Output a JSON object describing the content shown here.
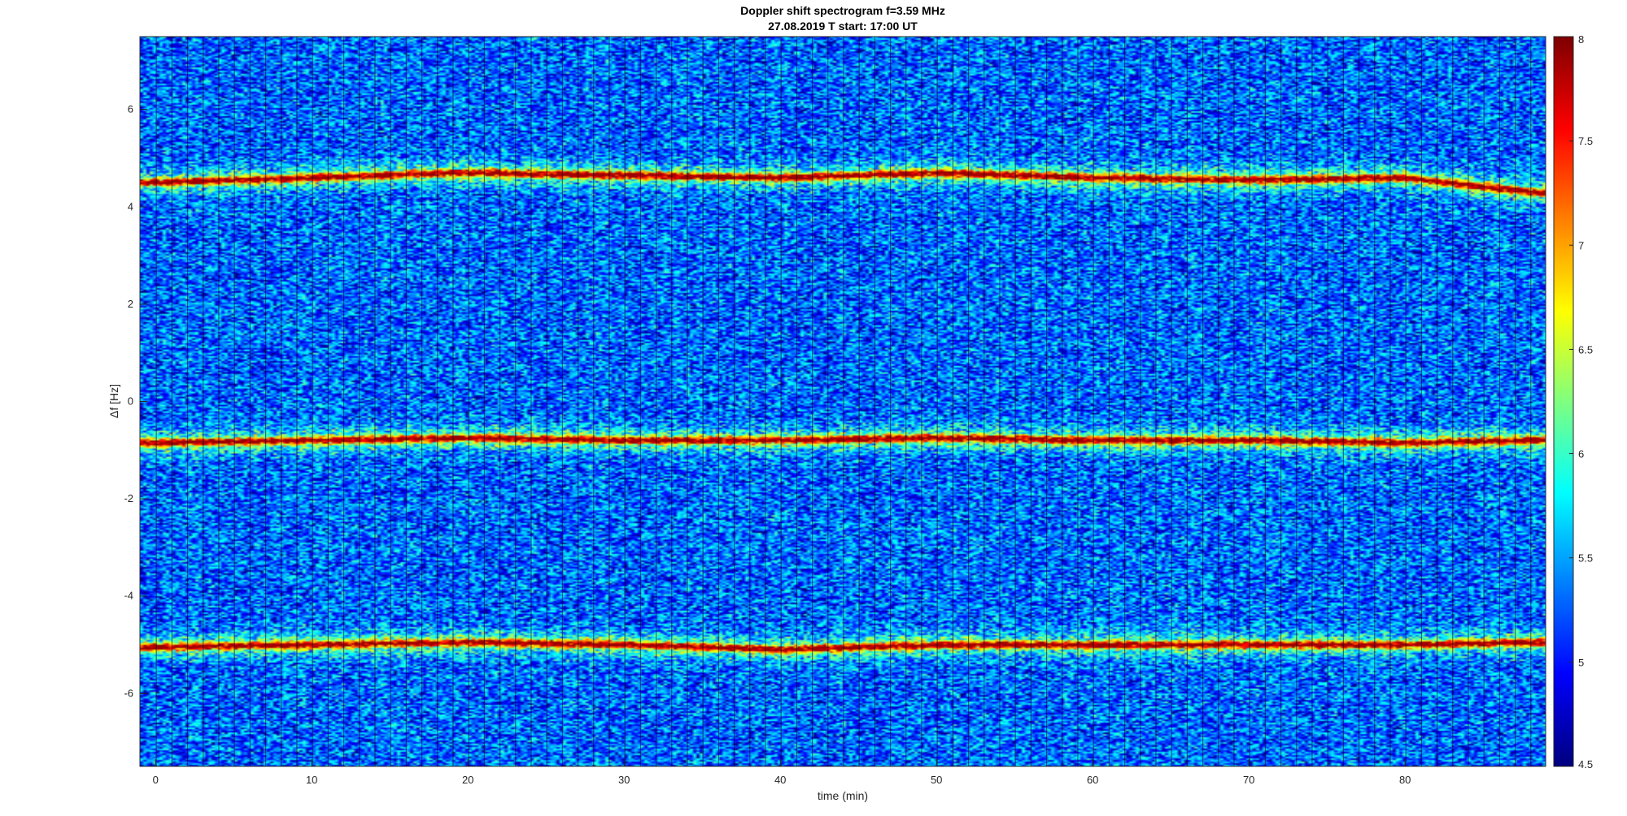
{
  "chart_data": {
    "type": "heatmap",
    "title": "Doppler shift spectrogram f=3.59 MHz",
    "subtitle": "27.08.2019    T start: 17:00 UT",
    "xlabel": "time (min)",
    "ylabel": "Δf [Hz]",
    "xlim": [
      -1,
      89
    ],
    "ylim": [
      -7.5,
      7.5
    ],
    "xticks": [
      0,
      10,
      20,
      30,
      40,
      50,
      60,
      70,
      80
    ],
    "yticks": [
      -6,
      -4,
      -2,
      0,
      2,
      4,
      6
    ],
    "colorbar": {
      "colormap": "jet",
      "clim": [
        4.5,
        8
      ],
      "ticks": [
        4.5,
        5,
        5.5,
        6,
        6.5,
        7,
        7.5,
        8
      ]
    },
    "traces": [
      {
        "center_hz": 4.6,
        "description_values_hz": [
          4.5,
          4.6,
          4.7,
          4.65,
          4.6,
          4.7,
          4.6,
          4.55,
          4.6,
          4.3
        ]
      },
      {
        "center_hz": -0.8,
        "description_values_hz": [
          -0.85,
          -0.8,
          -0.75,
          -0.8,
          -0.8,
          -0.75,
          -0.8,
          -0.8,
          -0.85,
          -0.8
        ]
      },
      {
        "center_hz": -5.0,
        "description_values_hz": [
          -5.05,
          -5.0,
          -4.95,
          -5.0,
          -5.1,
          -5.0,
          -5.0,
          -5.0,
          -5.0,
          -4.95
        ]
      }
    ],
    "trace_times_min": [
      0,
      10,
      20,
      30,
      40,
      50,
      60,
      70,
      80,
      88
    ],
    "background_level": 5.2,
    "peak_level": 7.8
  }
}
